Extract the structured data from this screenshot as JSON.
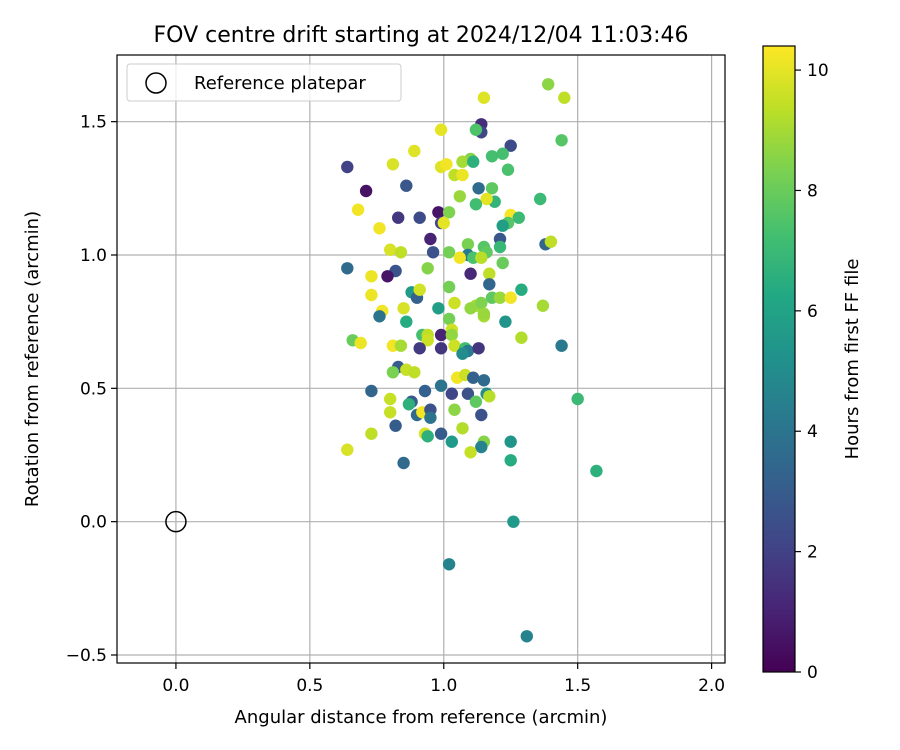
{
  "chart_data": {
    "type": "scatter",
    "title": "FOV centre drift starting at 2024/12/04 11:03:46",
    "xlabel": "Angular distance from reference (arcmin)",
    "ylabel": "Rotation from reference (arcmin)",
    "xlim": [
      -0.22,
      2.05
    ],
    "ylim": [
      -0.53,
      1.75
    ],
    "xticks": [
      0.0,
      0.5,
      1.0,
      1.5,
      2.0
    ],
    "xtick_labels": [
      "0.0",
      "0.5",
      "1.0",
      "1.5",
      "2.0"
    ],
    "yticks": [
      -0.5,
      0.0,
      0.5,
      1.0,
      1.5
    ],
    "ytick_labels": [
      "−0.5",
      "0.0",
      "0.5",
      "1.0",
      "1.5"
    ],
    "grid": true,
    "legend": {
      "placement": "top-left",
      "entries": [
        "Reference platepar"
      ]
    },
    "reference_point": {
      "x": 0.0,
      "y": 0.0,
      "label": "Reference platepar"
    },
    "colorbar": {
      "label": "Hours from first FF file",
      "range": [
        0,
        10.4
      ],
      "ticks": [
        0,
        2,
        4,
        6,
        8,
        10
      ],
      "tick_labels": [
        "0",
        "2",
        "4",
        "6",
        "8",
        "10"
      ],
      "colormap": "viridis"
    },
    "series": [
      {
        "marker": "filled-circle",
        "points": [
          [
            1.39,
            1.64,
            8.6
          ],
          [
            1.45,
            1.59,
            9.4
          ],
          [
            1.15,
            1.59,
            9.9
          ],
          [
            1.14,
            1.49,
            1.3
          ],
          [
            1.14,
            1.46,
            2.2
          ],
          [
            1.12,
            1.47,
            7.5
          ],
          [
            0.99,
            1.47,
            10.0
          ],
          [
            1.44,
            1.43,
            7.6
          ],
          [
            1.25,
            1.41,
            2.4
          ],
          [
            0.89,
            1.39,
            9.9
          ],
          [
            1.22,
            1.38,
            7.3
          ],
          [
            1.18,
            1.37,
            7.3
          ],
          [
            1.1,
            1.36,
            8.5
          ],
          [
            1.07,
            1.35,
            9.0
          ],
          [
            0.64,
            1.33,
            2.0
          ],
          [
            0.81,
            1.34,
            9.8
          ],
          [
            0.99,
            1.33,
            9.9
          ],
          [
            1.01,
            1.34,
            10.2
          ],
          [
            1.11,
            1.35,
            6.6
          ],
          [
            1.24,
            1.32,
            7.4
          ],
          [
            1.04,
            1.3,
            9.4
          ],
          [
            1.07,
            1.3,
            10.1
          ],
          [
            0.86,
            1.26,
            2.8
          ],
          [
            0.71,
            1.24,
            0.5
          ],
          [
            1.13,
            1.25,
            3.6
          ],
          [
            1.06,
            1.22,
            8.8
          ],
          [
            1.18,
            1.25,
            7.8
          ],
          [
            1.19,
            1.2,
            6.8
          ],
          [
            1.16,
            1.21,
            10.0
          ],
          [
            1.36,
            1.21,
            7.0
          ],
          [
            0.68,
            1.17,
            10.2
          ],
          [
            1.12,
            1.19,
            7.2
          ],
          [
            0.83,
            1.14,
            1.7
          ],
          [
            0.91,
            1.14,
            2.4
          ],
          [
            0.98,
            1.16,
            0.6
          ],
          [
            1.02,
            1.16,
            8.4
          ],
          [
            1.25,
            1.15,
            10.3
          ],
          [
            1.28,
            1.14,
            7.0
          ],
          [
            1.24,
            1.12,
            7.6
          ],
          [
            0.99,
            1.12,
            2.1
          ],
          [
            0.76,
            1.1,
            10.2
          ],
          [
            1.0,
            1.12,
            10.0
          ],
          [
            1.22,
            1.11,
            5.8
          ],
          [
            0.95,
            1.06,
            1.0
          ],
          [
            1.21,
            1.06,
            2.8
          ],
          [
            1.38,
            1.04,
            3.4
          ],
          [
            1.4,
            1.05,
            9.4
          ],
          [
            1.15,
            1.03,
            7.6
          ],
          [
            1.09,
            1.04,
            8.3
          ],
          [
            0.8,
            1.02,
            9.8
          ],
          [
            0.84,
            1.01,
            9.4
          ],
          [
            0.96,
            1.01,
            2.6
          ],
          [
            1.02,
            1.01,
            8.2
          ],
          [
            1.21,
            1.03,
            6.9
          ],
          [
            1.16,
            1.01,
            7.8
          ],
          [
            1.09,
            1.0,
            4.2
          ],
          [
            1.06,
            0.99,
            10.2
          ],
          [
            1.11,
            0.99,
            7.4
          ],
          [
            1.14,
            0.99,
            9.3
          ],
          [
            1.22,
            0.97,
            8.0
          ],
          [
            0.64,
            0.95,
            3.6
          ],
          [
            0.82,
            0.94,
            2.7
          ],
          [
            0.94,
            0.95,
            8.5
          ],
          [
            0.79,
            0.92,
            0.6
          ],
          [
            0.73,
            0.92,
            10.1
          ],
          [
            1.1,
            0.93,
            1.2
          ],
          [
            1.17,
            0.93,
            9.4
          ],
          [
            1.17,
            0.89,
            3.4
          ],
          [
            0.88,
            0.86,
            5.6
          ],
          [
            0.9,
            0.84,
            3.2
          ],
          [
            0.91,
            0.87,
            9.7
          ],
          [
            0.73,
            0.85,
            10.1
          ],
          [
            1.02,
            0.88,
            8.2
          ],
          [
            1.18,
            0.84,
            7.8
          ],
          [
            1.21,
            0.84,
            8.8
          ],
          [
            1.25,
            0.84,
            10.2
          ],
          [
            1.29,
            0.87,
            6.4
          ],
          [
            0.85,
            0.8,
            9.8
          ],
          [
            0.98,
            0.8,
            5.8
          ],
          [
            1.04,
            0.82,
            9.6
          ],
          [
            1.12,
            0.81,
            9.0
          ],
          [
            1.14,
            0.82,
            8.4
          ],
          [
            1.1,
            0.8,
            8.7
          ],
          [
            1.15,
            0.77,
            9.0
          ],
          [
            1.15,
            0.78,
            8.8
          ],
          [
            1.37,
            0.81,
            9.0
          ],
          [
            0.77,
            0.79,
            10.2
          ],
          [
            0.76,
            0.77,
            4.0
          ],
          [
            0.86,
            0.75,
            6.4
          ],
          [
            1.02,
            0.76,
            8.2
          ],
          [
            1.23,
            0.75,
            5.4
          ],
          [
            1.03,
            0.72,
            9.6
          ],
          [
            0.92,
            0.7,
            7.3
          ],
          [
            0.94,
            0.7,
            9.4
          ],
          [
            0.99,
            0.7,
            1.0
          ],
          [
            1.03,
            0.7,
            8.7
          ],
          [
            1.29,
            0.69,
            9.2
          ],
          [
            0.66,
            0.68,
            8.0
          ],
          [
            0.69,
            0.67,
            10.1
          ],
          [
            0.94,
            0.68,
            9.6
          ],
          [
            0.81,
            0.66,
            10.2
          ],
          [
            0.84,
            0.66,
            9.0
          ],
          [
            0.91,
            0.65,
            1.8
          ],
          [
            0.99,
            0.65,
            1.6
          ],
          [
            1.04,
            0.66,
            9.6
          ],
          [
            1.08,
            0.65,
            7.2
          ],
          [
            1.09,
            0.64,
            4.2
          ],
          [
            1.07,
            0.63,
            5.0
          ],
          [
            1.13,
            0.65,
            1.6
          ],
          [
            1.44,
            0.66,
            4.2
          ],
          [
            0.83,
            0.58,
            3.0
          ],
          [
            0.81,
            0.56,
            8.3
          ],
          [
            0.86,
            0.57,
            9.5
          ],
          [
            0.89,
            0.56,
            9.4
          ],
          [
            1.05,
            0.54,
            10.2
          ],
          [
            1.08,
            0.55,
            9.6
          ],
          [
            1.11,
            0.54,
            3.2
          ],
          [
            1.15,
            0.53,
            3.6
          ],
          [
            0.73,
            0.49,
            3.4
          ],
          [
            0.93,
            0.49,
            3.2
          ],
          [
            0.99,
            0.51,
            4.0
          ],
          [
            1.03,
            0.48,
            2.2
          ],
          [
            1.09,
            0.48,
            2.6
          ],
          [
            1.16,
            0.48,
            5.0
          ],
          [
            1.17,
            0.47,
            9.3
          ],
          [
            1.12,
            0.45,
            7.8
          ],
          [
            1.5,
            0.46,
            7.0
          ],
          [
            0.8,
            0.46,
            9.5
          ],
          [
            0.88,
            0.45,
            3.0
          ],
          [
            0.87,
            0.44,
            6.6
          ],
          [
            0.9,
            0.4,
            3.6
          ],
          [
            0.92,
            0.41,
            10.2
          ],
          [
            0.95,
            0.42,
            2.6
          ],
          [
            0.95,
            0.39,
            4.0
          ],
          [
            1.04,
            0.42,
            8.6
          ],
          [
            1.14,
            0.4,
            2.6
          ],
          [
            0.8,
            0.41,
            9.5
          ],
          [
            0.82,
            0.36,
            3.0
          ],
          [
            1.07,
            0.35,
            9.2
          ],
          [
            0.93,
            0.33,
            9.8
          ],
          [
            0.94,
            0.32,
            6.6
          ],
          [
            0.73,
            0.33,
            9.4
          ],
          [
            0.99,
            0.33,
            3.0
          ],
          [
            1.03,
            0.3,
            5.6
          ],
          [
            1.15,
            0.3,
            8.5
          ],
          [
            1.25,
            0.3,
            5.4
          ],
          [
            1.14,
            0.28,
            4.6
          ],
          [
            1.1,
            0.26,
            9.5
          ],
          [
            0.64,
            0.27,
            9.8
          ],
          [
            1.25,
            0.23,
            6.4
          ],
          [
            0.85,
            0.22,
            3.6
          ],
          [
            1.57,
            0.19,
            6.6
          ],
          [
            1.26,
            -0.0,
            5.6
          ],
          [
            1.02,
            -0.16,
            4.6
          ],
          [
            1.31,
            -0.43,
            4.6
          ]
        ]
      }
    ]
  }
}
